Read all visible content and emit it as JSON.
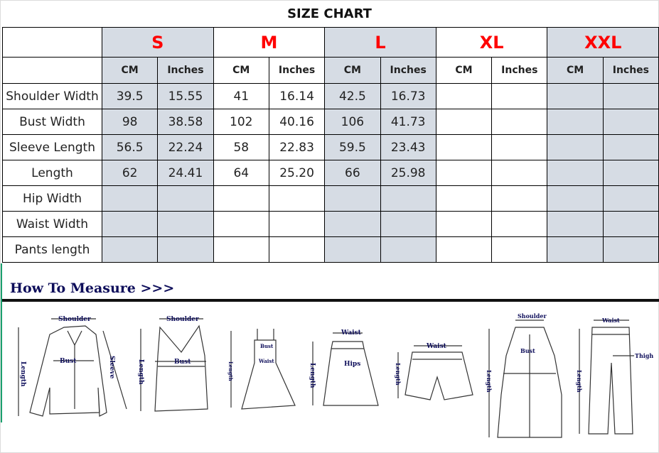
{
  "title": "SIZE CHART",
  "sizes": [
    "S",
    "M",
    "L",
    "XL",
    "XXL"
  ],
  "units": [
    "CM",
    "Inches"
  ],
  "rows": [
    {
      "label": "Shoulder Width",
      "values": [
        "39.5",
        "15.55",
        "41",
        "16.14",
        "42.5",
        "16.73",
        "",
        "",
        "",
        ""
      ]
    },
    {
      "label": "Bust Width",
      "values": [
        "98",
        "38.58",
        "102",
        "40.16",
        "106",
        "41.73",
        "",
        "",
        "",
        ""
      ]
    },
    {
      "label": "Sleeve Length",
      "values": [
        "56.5",
        "22.24",
        "58",
        "22.83",
        "59.5",
        "23.43",
        "",
        "",
        "",
        ""
      ]
    },
    {
      "label": "Length",
      "values": [
        "62",
        "24.41",
        "64",
        "25.20",
        "66",
        "25.98",
        "",
        "",
        "",
        ""
      ]
    },
    {
      "label": "Hip Width",
      "values": [
        "",
        "",
        "",
        "",
        "",
        "",
        "",
        "",
        "",
        ""
      ]
    },
    {
      "label": "Waist Width",
      "values": [
        "",
        "",
        "",
        "",
        "",
        "",
        "",
        "",
        "",
        ""
      ]
    },
    {
      "label": "Pants length",
      "values": [
        "",
        "",
        "",
        "",
        "",
        "",
        "",
        "",
        "",
        ""
      ]
    }
  ],
  "colors": {
    "size_label": "#ff0000",
    "shade": "#d6dce4",
    "measure_text": "#0d0d5a"
  },
  "measure": {
    "title": "How To Measure >>>",
    "labels": {
      "shoulder": "Shoulder",
      "bust": "Bust",
      "sleeve": "Sleeve",
      "length": "Length",
      "waist": "Waist",
      "hips": "Hips",
      "thigh": "Thigh"
    }
  }
}
